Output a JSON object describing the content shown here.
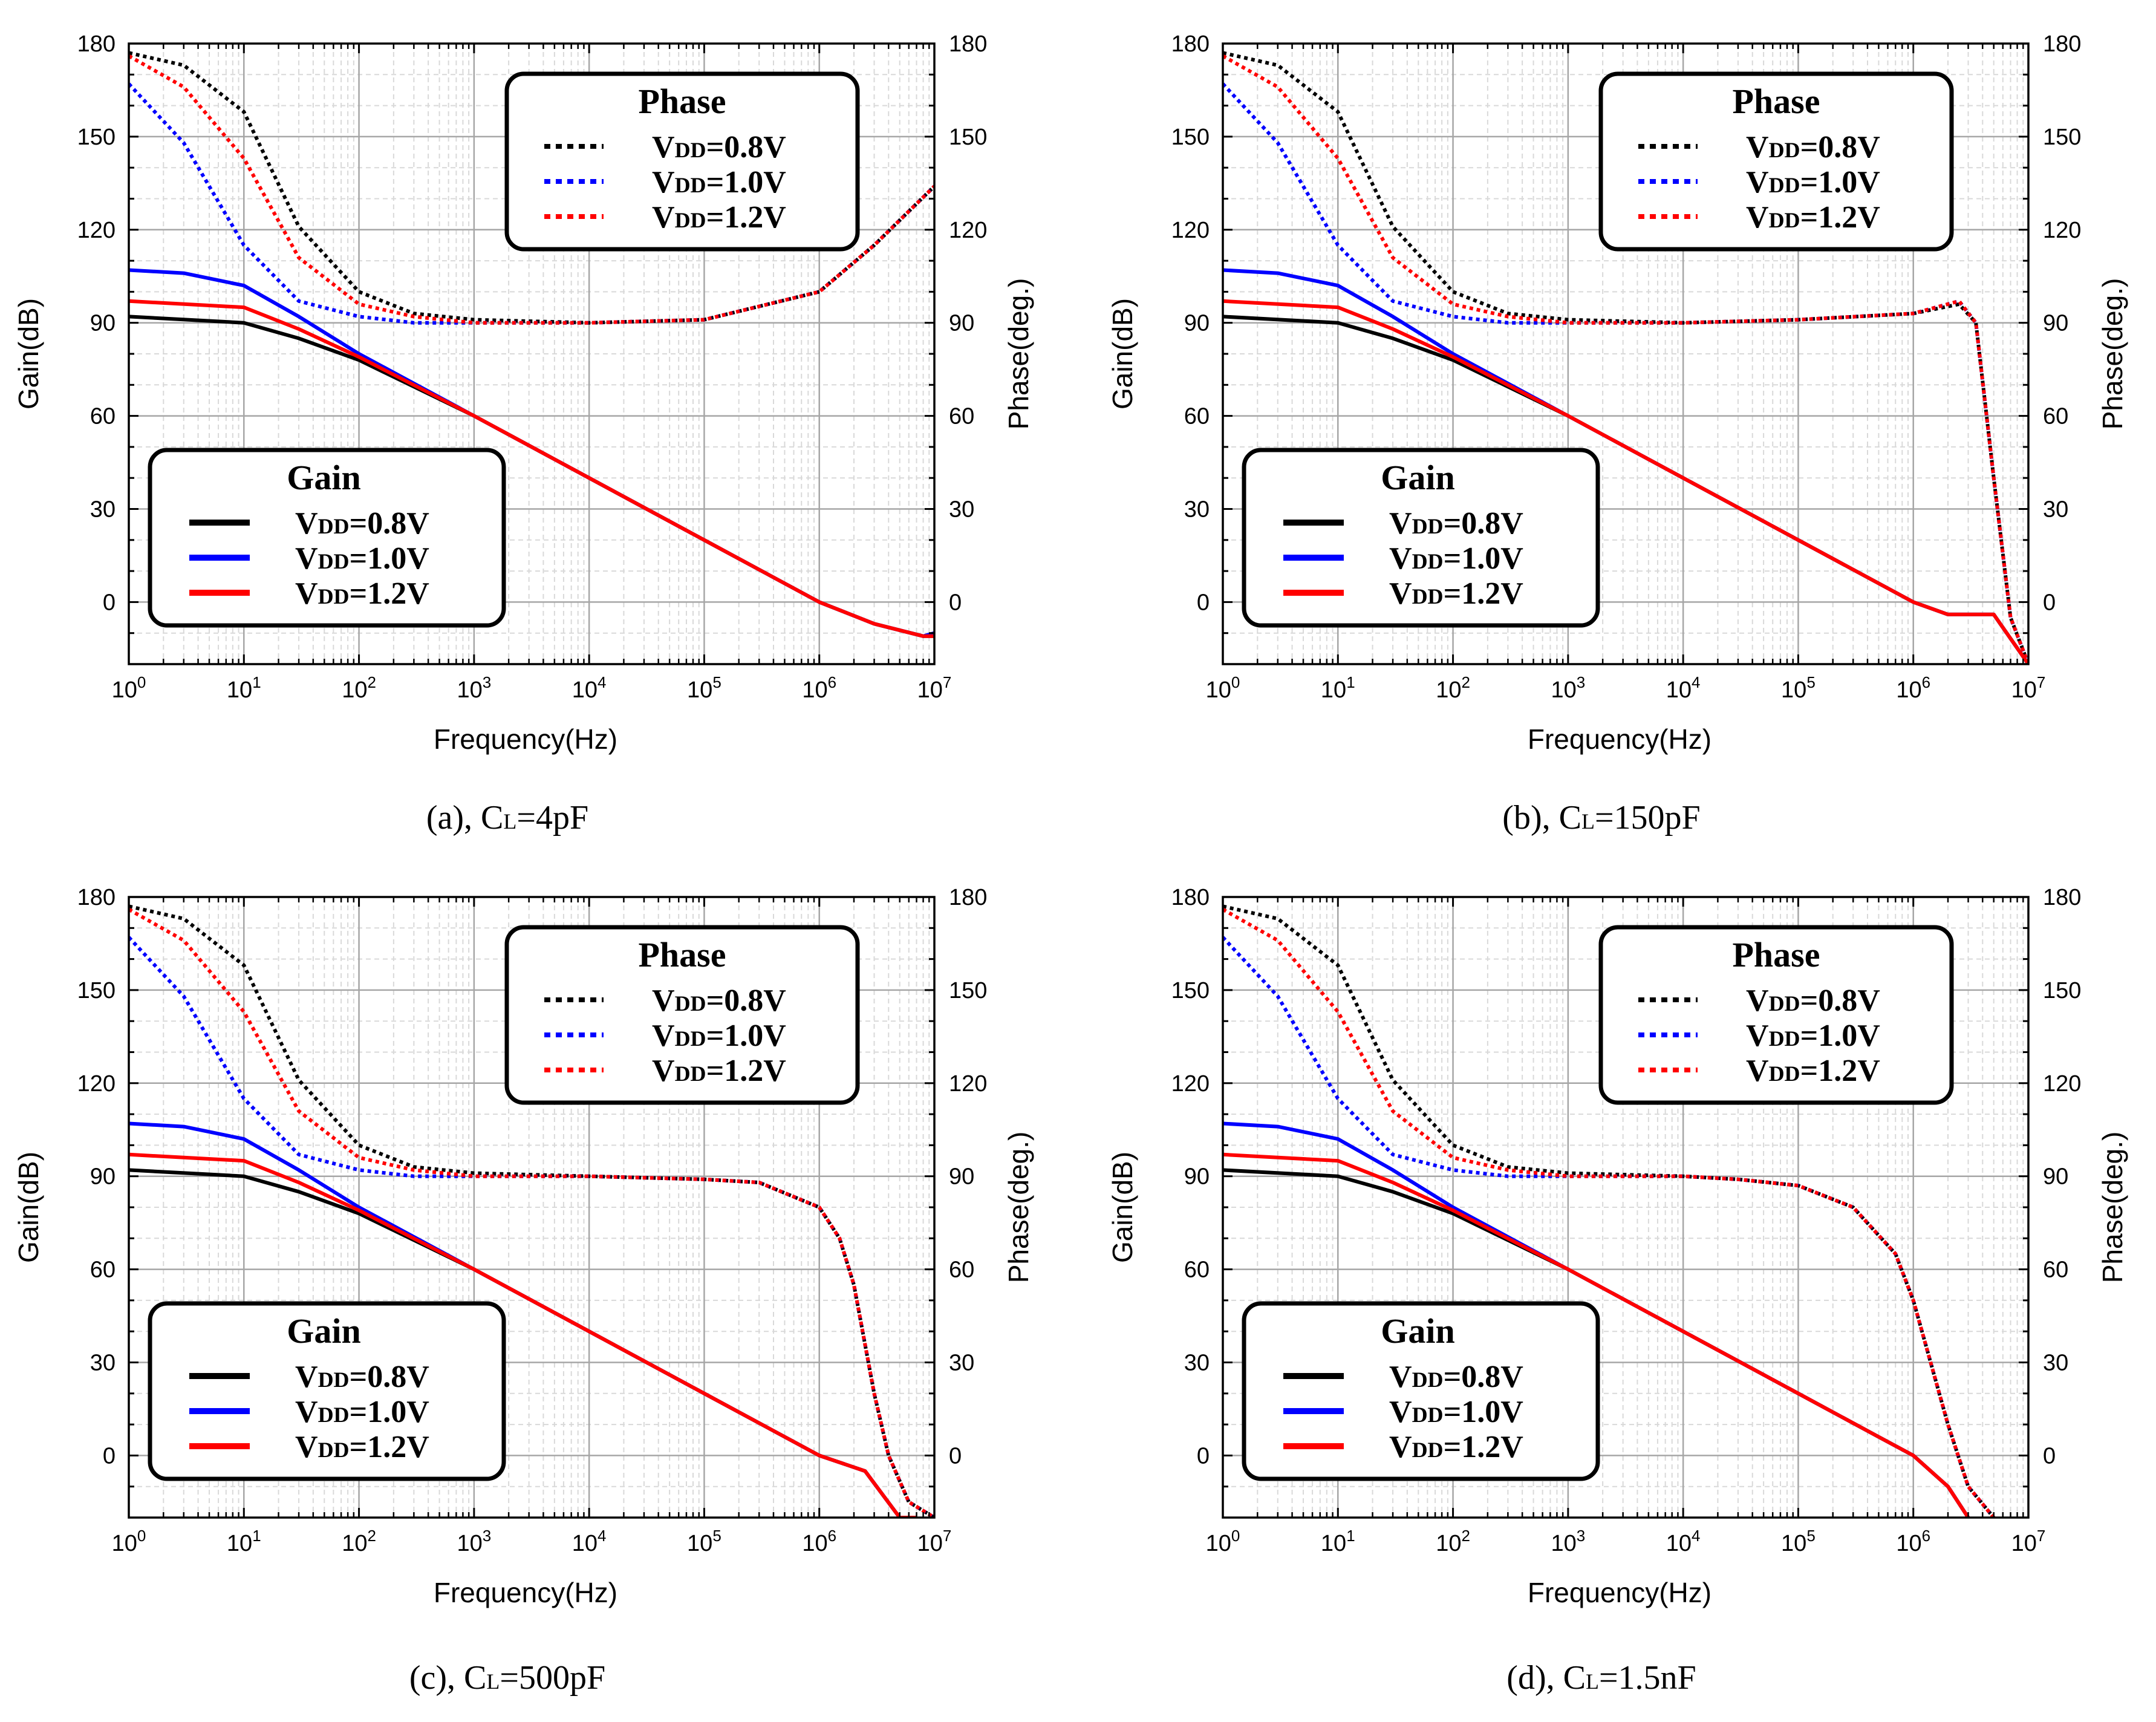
{
  "series_colors": {
    "v08": "#000000",
    "v10": "#0000ff",
    "v12": "#ff0000"
  },
  "chart_data": [
    {
      "type": "line",
      "caption": "(a), CL=4pF",
      "xlabel": "Frequency(Hz)",
      "ylabel": "Gain(dB)",
      "y2label": "Phase(deg.)",
      "xscale": "log",
      "xlim": [
        1,
        10000000
      ],
      "ylim": [
        -20,
        180
      ],
      "y2lim": [
        -20,
        180
      ],
      "xticks": [
        "10^0",
        "10^1",
        "10^2",
        "10^3",
        "10^4",
        "10^5",
        "10^6",
        "10^7"
      ],
      "yticks": [
        0,
        30,
        60,
        90,
        120,
        150,
        180
      ],
      "gain_legend": {
        "title": "Gain",
        "entries": [
          "VDD=0.8V",
          "VDD=1.0V",
          "VDD=1.2V"
        ],
        "placement": "lower-left"
      },
      "phase_legend": {
        "title": "Phase",
        "entries": [
          "VDD=0.8V",
          "VDD=1.0V",
          "VDD=1.2V"
        ],
        "placement": "upper-right"
      },
      "gain_series": [
        {
          "name": "VDD=0.8V",
          "x": [
            1,
            10,
            30,
            100,
            1000,
            10000,
            100000,
            1000000,
            3000000,
            8000000,
            10000000
          ],
          "y": [
            92,
            90,
            85,
            78,
            60,
            40,
            20,
            0,
            -7,
            -11,
            -11
          ]
        },
        {
          "name": "VDD=1.0V",
          "x": [
            1,
            3,
            10,
            30,
            100,
            1000,
            10000,
            100000,
            1000000,
            3000000,
            8000000,
            10000000
          ],
          "y": [
            107,
            106,
            102,
            92,
            80,
            60,
            40,
            20,
            0,
            -7,
            -11,
            -10
          ]
        },
        {
          "name": "VDD=1.2V",
          "x": [
            1,
            10,
            30,
            100,
            1000,
            10000,
            100000,
            1000000,
            3000000,
            8000000,
            10000000
          ],
          "y": [
            97,
            95,
            88,
            79,
            60,
            40,
            20,
            0,
            -7,
            -11,
            -11
          ]
        }
      ],
      "phase_series": [
        {
          "name": "VDD=0.8V",
          "x": [
            1,
            3,
            10,
            30,
            100,
            300,
            1000,
            10000,
            100000,
            1000000,
            3000000,
            10000000
          ],
          "y": [
            177,
            173,
            158,
            121,
            100,
            93,
            91,
            90,
            91,
            100,
            115,
            134
          ]
        },
        {
          "name": "VDD=1.0V",
          "x": [
            1,
            3,
            10,
            30,
            100,
            300,
            1000,
            10000,
            100000,
            1000000,
            3000000,
            10000000
          ],
          "y": [
            167,
            148,
            115,
            97,
            92,
            90,
            90,
            90,
            91,
            100,
            115,
            134
          ]
        },
        {
          "name": "VDD=1.2V",
          "x": [
            1,
            3,
            10,
            30,
            100,
            300,
            1000,
            10000,
            100000,
            1000000,
            3000000,
            10000000
          ],
          "y": [
            176,
            166,
            143,
            111,
            96,
            92,
            90,
            90,
            91,
            100,
            115,
            134
          ]
        }
      ]
    },
    {
      "type": "line",
      "caption": "(b), CL=150pF",
      "xlabel": "Frequency(Hz)",
      "ylabel": "Gain(dB)",
      "y2label": "Phase(deg.)",
      "xscale": "log",
      "xlim": [
        1,
        10000000
      ],
      "ylim": [
        -20,
        180
      ],
      "y2lim": [
        -20,
        180
      ],
      "xticks": [
        "10^0",
        "10^1",
        "10^2",
        "10^3",
        "10^4",
        "10^5",
        "10^6",
        "10^7"
      ],
      "yticks": [
        0,
        30,
        60,
        90,
        120,
        150,
        180
      ],
      "gain_legend": {
        "title": "Gain",
        "entries": [
          "VDD=0.8V",
          "VDD=1.0V",
          "VDD=1.2V"
        ],
        "placement": "lower-left"
      },
      "phase_legend": {
        "title": "Phase",
        "entries": [
          "VDD=0.8V",
          "VDD=1.0V",
          "VDD=1.2V"
        ],
        "placement": "upper-right"
      },
      "gain_series": [
        {
          "name": "VDD=0.8V",
          "x": [
            1,
            10,
            30,
            100,
            1000,
            10000,
            100000,
            1000000,
            2000000,
            5000000,
            10000000
          ],
          "y": [
            92,
            90,
            85,
            78,
            60,
            40,
            20,
            0,
            -4,
            -4,
            -20
          ]
        },
        {
          "name": "VDD=1.0V",
          "x": [
            1,
            3,
            10,
            30,
            100,
            1000,
            10000,
            100000,
            1000000,
            2000000,
            5000000,
            10000000
          ],
          "y": [
            107,
            106,
            102,
            92,
            80,
            60,
            40,
            20,
            0,
            -4,
            -4,
            -20
          ]
        },
        {
          "name": "VDD=1.2V",
          "x": [
            1,
            10,
            30,
            100,
            1000,
            10000,
            100000,
            1000000,
            2000000,
            5000000,
            10000000
          ],
          "y": [
            97,
            95,
            88,
            79,
            60,
            40,
            20,
            0,
            -4,
            -4,
            -20
          ]
        }
      ],
      "phase_series": [
        {
          "name": "VDD=0.8V",
          "x": [
            1,
            3,
            10,
            30,
            100,
            300,
            1000,
            10000,
            100000,
            1000000,
            2500000,
            3500000,
            5000000,
            7000000,
            10000000
          ],
          "y": [
            177,
            173,
            158,
            121,
            100,
            93,
            91,
            90,
            91,
            93,
            96,
            90,
            40,
            -5,
            -20
          ]
        },
        {
          "name": "VDD=1.0V",
          "x": [
            1,
            3,
            10,
            30,
            100,
            300,
            1000,
            10000,
            100000,
            1000000,
            2500000,
            3500000,
            5000000,
            7000000,
            10000000
          ],
          "y": [
            167,
            148,
            115,
            97,
            92,
            90,
            90,
            90,
            91,
            93,
            97,
            90,
            40,
            -5,
            -20
          ]
        },
        {
          "name": "VDD=1.2V",
          "x": [
            1,
            3,
            10,
            30,
            100,
            300,
            1000,
            10000,
            100000,
            1000000,
            2500000,
            3500000,
            5000000,
            7000000,
            10000000
          ],
          "y": [
            176,
            166,
            143,
            111,
            96,
            92,
            90,
            90,
            91,
            93,
            97,
            90,
            40,
            -5,
            -20
          ]
        }
      ]
    },
    {
      "type": "line",
      "caption": "(c), CL=500pF",
      "xlabel": "Frequency(Hz)",
      "ylabel": "Gain(dB)",
      "y2label": "Phase(deg.)",
      "xscale": "log",
      "xlim": [
        1,
        10000000
      ],
      "ylim": [
        -20,
        180
      ],
      "y2lim": [
        -20,
        180
      ],
      "xticks": [
        "10^0",
        "10^1",
        "10^2",
        "10^3",
        "10^4",
        "10^5",
        "10^6",
        "10^7"
      ],
      "yticks": [
        0,
        30,
        60,
        90,
        120,
        150,
        180
      ],
      "gain_legend": {
        "title": "Gain",
        "entries": [
          "VDD=0.8V",
          "VDD=1.0V",
          "VDD=1.2V"
        ],
        "placement": "lower-left"
      },
      "phase_legend": {
        "title": "Phase",
        "entries": [
          "VDD=0.8V",
          "VDD=1.0V",
          "VDD=1.2V"
        ],
        "placement": "upper-right"
      },
      "gain_series": [
        {
          "name": "VDD=0.8V",
          "x": [
            1,
            10,
            30,
            100,
            1000,
            10000,
            100000,
            1000000,
            2500000,
            5000000,
            7000000
          ],
          "y": [
            92,
            90,
            85,
            78,
            60,
            40,
            20,
            0,
            -5,
            -20,
            -20
          ]
        },
        {
          "name": "VDD=1.0V",
          "x": [
            1,
            3,
            10,
            30,
            100,
            1000,
            10000,
            100000,
            1000000,
            2500000,
            5000000,
            7000000
          ],
          "y": [
            107,
            106,
            102,
            92,
            80,
            60,
            40,
            20,
            0,
            -5,
            -20,
            -20
          ]
        },
        {
          "name": "VDD=1.2V",
          "x": [
            1,
            10,
            30,
            100,
            1000,
            10000,
            100000,
            1000000,
            2500000,
            5000000,
            7000000
          ],
          "y": [
            97,
            95,
            88,
            79,
            60,
            40,
            20,
            0,
            -5,
            -20,
            -20
          ]
        }
      ],
      "phase_series": [
        {
          "name": "VDD=0.8V",
          "x": [
            1,
            3,
            10,
            30,
            100,
            300,
            1000,
            10000,
            100000,
            300000,
            1000000,
            1500000,
            2000000,
            3000000,
            4000000,
            6000000,
            10000000
          ],
          "y": [
            177,
            173,
            158,
            121,
            100,
            93,
            91,
            90,
            89,
            88,
            80,
            70,
            55,
            20,
            0,
            -15,
            -20
          ]
        },
        {
          "name": "VDD=1.0V",
          "x": [
            1,
            3,
            10,
            30,
            100,
            300,
            1000,
            10000,
            100000,
            300000,
            1000000,
            1500000,
            2000000,
            3000000,
            4000000,
            6000000,
            10000000
          ],
          "y": [
            167,
            148,
            115,
            97,
            92,
            90,
            90,
            90,
            89,
            88,
            80,
            70,
            55,
            20,
            0,
            -15,
            -20
          ]
        },
        {
          "name": "VDD=1.2V",
          "x": [
            1,
            3,
            10,
            30,
            100,
            300,
            1000,
            10000,
            100000,
            300000,
            1000000,
            1500000,
            2000000,
            3000000,
            4000000,
            6000000,
            10000000
          ],
          "y": [
            176,
            166,
            143,
            111,
            96,
            92,
            90,
            90,
            89,
            88,
            80,
            70,
            55,
            20,
            0,
            -15,
            -20
          ]
        }
      ]
    },
    {
      "type": "line",
      "caption": "(d), CL=1.5nF",
      "xlabel": "Frequency(Hz)",
      "ylabel": "Gain(dB)",
      "y2label": "Phase(deg.)",
      "xscale": "log",
      "xlim": [
        1,
        10000000
      ],
      "ylim": [
        -20,
        180
      ],
      "y2lim": [
        -20,
        180
      ],
      "xticks": [
        "10^0",
        "10^1",
        "10^2",
        "10^3",
        "10^4",
        "10^5",
        "10^6",
        "10^7"
      ],
      "yticks": [
        0,
        30,
        60,
        90,
        120,
        150,
        180
      ],
      "gain_legend": {
        "title": "Gain",
        "entries": [
          "VDD=0.8V",
          "VDD=1.0V",
          "VDD=1.2V"
        ],
        "placement": "lower-left"
      },
      "phase_legend": {
        "title": "Phase",
        "entries": [
          "VDD=0.8V",
          "VDD=1.0V",
          "VDD=1.2V"
        ],
        "placement": "upper-right"
      },
      "gain_series": [
        {
          "name": "VDD=0.8V",
          "x": [
            1,
            10,
            30,
            100,
            1000,
            10000,
            100000,
            500000,
            1000000,
            2000000,
            3000000
          ],
          "y": [
            92,
            90,
            85,
            78,
            60,
            40,
            20,
            6,
            0,
            -10,
            -20
          ]
        },
        {
          "name": "VDD=1.0V",
          "x": [
            1,
            3,
            10,
            30,
            100,
            1000,
            10000,
            100000,
            500000,
            1000000,
            2000000,
            3000000
          ],
          "y": [
            107,
            106,
            102,
            92,
            80,
            60,
            40,
            20,
            6,
            0,
            -10,
            -20
          ]
        },
        {
          "name": "VDD=1.2V",
          "x": [
            1,
            10,
            30,
            100,
            1000,
            10000,
            100000,
            500000,
            1000000,
            2000000,
            3000000
          ],
          "y": [
            97,
            95,
            88,
            79,
            60,
            40,
            20,
            6,
            0,
            -10,
            -20
          ]
        }
      ],
      "phase_series": [
        {
          "name": "VDD=0.8V",
          "x": [
            1,
            3,
            10,
            30,
            100,
            300,
            1000,
            10000,
            30000,
            100000,
            300000,
            700000,
            1000000,
            2000000,
            3000000,
            5000000
          ],
          "y": [
            177,
            173,
            158,
            121,
            100,
            93,
            91,
            90,
            89,
            87,
            80,
            65,
            50,
            10,
            -10,
            -20
          ]
        },
        {
          "name": "VDD=1.0V",
          "x": [
            1,
            3,
            10,
            30,
            100,
            300,
            1000,
            10000,
            30000,
            100000,
            300000,
            700000,
            1000000,
            2000000,
            3000000,
            5000000
          ],
          "y": [
            167,
            148,
            115,
            97,
            92,
            90,
            90,
            90,
            89,
            87,
            80,
            65,
            50,
            10,
            -10,
            -20
          ]
        },
        {
          "name": "VDD=1.2V",
          "x": [
            1,
            3,
            10,
            30,
            100,
            300,
            1000,
            10000,
            30000,
            100000,
            300000,
            700000,
            1000000,
            2000000,
            3000000,
            5000000
          ],
          "y": [
            176,
            166,
            143,
            111,
            96,
            92,
            90,
            90,
            89,
            87,
            80,
            65,
            50,
            10,
            -10,
            -20
          ]
        }
      ]
    }
  ]
}
